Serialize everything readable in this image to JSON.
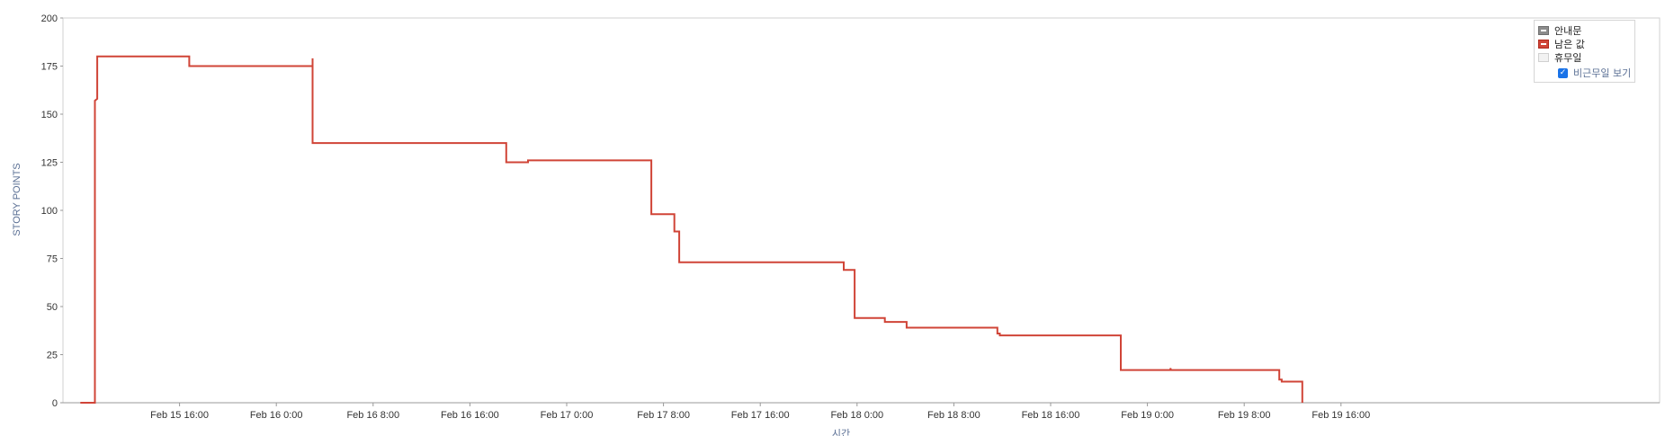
{
  "chart_data": {
    "type": "line",
    "xlabel": "시간",
    "ylabel": "STORY POINTS",
    "ylim": [
      0,
      200
    ],
    "y_ticks": [
      "0",
      "25",
      "50",
      "75",
      "100",
      "125",
      "150",
      "175",
      "200"
    ],
    "x_range_hours": [
      0,
      100
    ],
    "x_ticks": [
      {
        "h": 8,
        "label": "Feb 15 16:00"
      },
      {
        "h": 16,
        "label": "Feb 16 0:00"
      },
      {
        "h": 24,
        "label": "Feb 16 8:00"
      },
      {
        "h": 32,
        "label": "Feb 16 16:00"
      },
      {
        "h": 40,
        "label": "Feb 17 0:00"
      },
      {
        "h": 48,
        "label": "Feb 17 8:00"
      },
      {
        "h": 56,
        "label": "Feb 17 16:00"
      },
      {
        "h": 64,
        "label": "Feb 18 0:00"
      },
      {
        "h": 72,
        "label": "Feb 18 8:00"
      },
      {
        "h": 80,
        "label": "Feb 18 16:00"
      },
      {
        "h": 88,
        "label": "Feb 19 0:00"
      },
      {
        "h": 96,
        "label": "Feb 19 8:00"
      },
      {
        "h": 104,
        "label": "Feb 19 16:00"
      }
    ],
    "series": [
      {
        "name": "남은 값",
        "color": "#d04437",
        "step_points": [
          [
            -0.2,
            0
          ],
          [
            1.0,
            0
          ],
          [
            1.0,
            157
          ],
          [
            1.2,
            158
          ],
          [
            1.2,
            180
          ],
          [
            8.8,
            180
          ],
          [
            8.8,
            175
          ],
          [
            19.0,
            175
          ],
          [
            19.0,
            179
          ],
          [
            19.0,
            135
          ],
          [
            35.0,
            135
          ],
          [
            35.0,
            125
          ],
          [
            36.8,
            125
          ],
          [
            36.8,
            126
          ],
          [
            47.0,
            126
          ],
          [
            47.0,
            98
          ],
          [
            48.9,
            98
          ],
          [
            48.9,
            89
          ],
          [
            49.3,
            89
          ],
          [
            49.3,
            73
          ],
          [
            62.9,
            73
          ],
          [
            62.9,
            69
          ],
          [
            63.8,
            69
          ],
          [
            63.8,
            44
          ],
          [
            66.3,
            44
          ],
          [
            66.3,
            42
          ],
          [
            68.1,
            42
          ],
          [
            68.1,
            39
          ],
          [
            75.6,
            39
          ],
          [
            75.6,
            36
          ],
          [
            75.8,
            36
          ],
          [
            75.8,
            35
          ],
          [
            85.8,
            35
          ],
          [
            85.8,
            17
          ],
          [
            89.9,
            17
          ],
          [
            89.9,
            18
          ],
          [
            89.95,
            17
          ],
          [
            98.9,
            17
          ],
          [
            98.9,
            12
          ],
          [
            99.1,
            12
          ],
          [
            99.1,
            11
          ],
          [
            100.8,
            11
          ],
          [
            100.8,
            0
          ]
        ]
      }
    ],
    "legend": {
      "position": "top-right",
      "items": [
        {
          "label": "안내문",
          "icon": "guide-swatch-icon"
        },
        {
          "label": "남은 값",
          "icon": "remaining-swatch-icon"
        },
        {
          "label": "휴무일",
          "icon": "non-working-swatch-icon"
        }
      ],
      "checkbox_label": "비근무일 보기",
      "checkbox_checked": true
    },
    "grid": false
  }
}
